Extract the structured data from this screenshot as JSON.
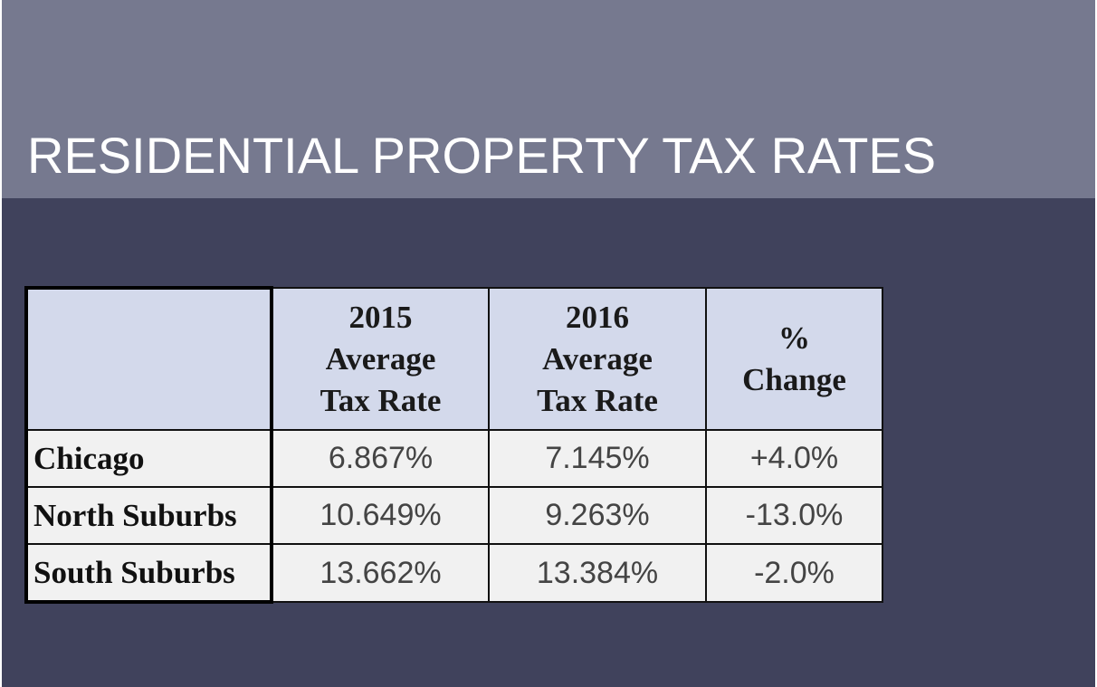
{
  "title": "RESIDENTIAL PROPERTY TAX RATES",
  "table": {
    "headers": [
      "",
      [
        "2015",
        "Average",
        "Tax Rate"
      ],
      [
        "2016",
        "Average",
        "Tax Rate"
      ],
      [
        "%",
        "Change"
      ]
    ],
    "rows": [
      {
        "label": "Chicago",
        "cells": [
          "6.867%",
          "7.145%",
          "+4.0%"
        ]
      },
      {
        "label": "North Suburbs",
        "cells": [
          "10.649%",
          "9.263%",
          "-13.0%"
        ]
      },
      {
        "label": "South Suburbs",
        "cells": [
          "13.662%",
          "13.384%",
          "-2.0%"
        ]
      }
    ]
  }
}
